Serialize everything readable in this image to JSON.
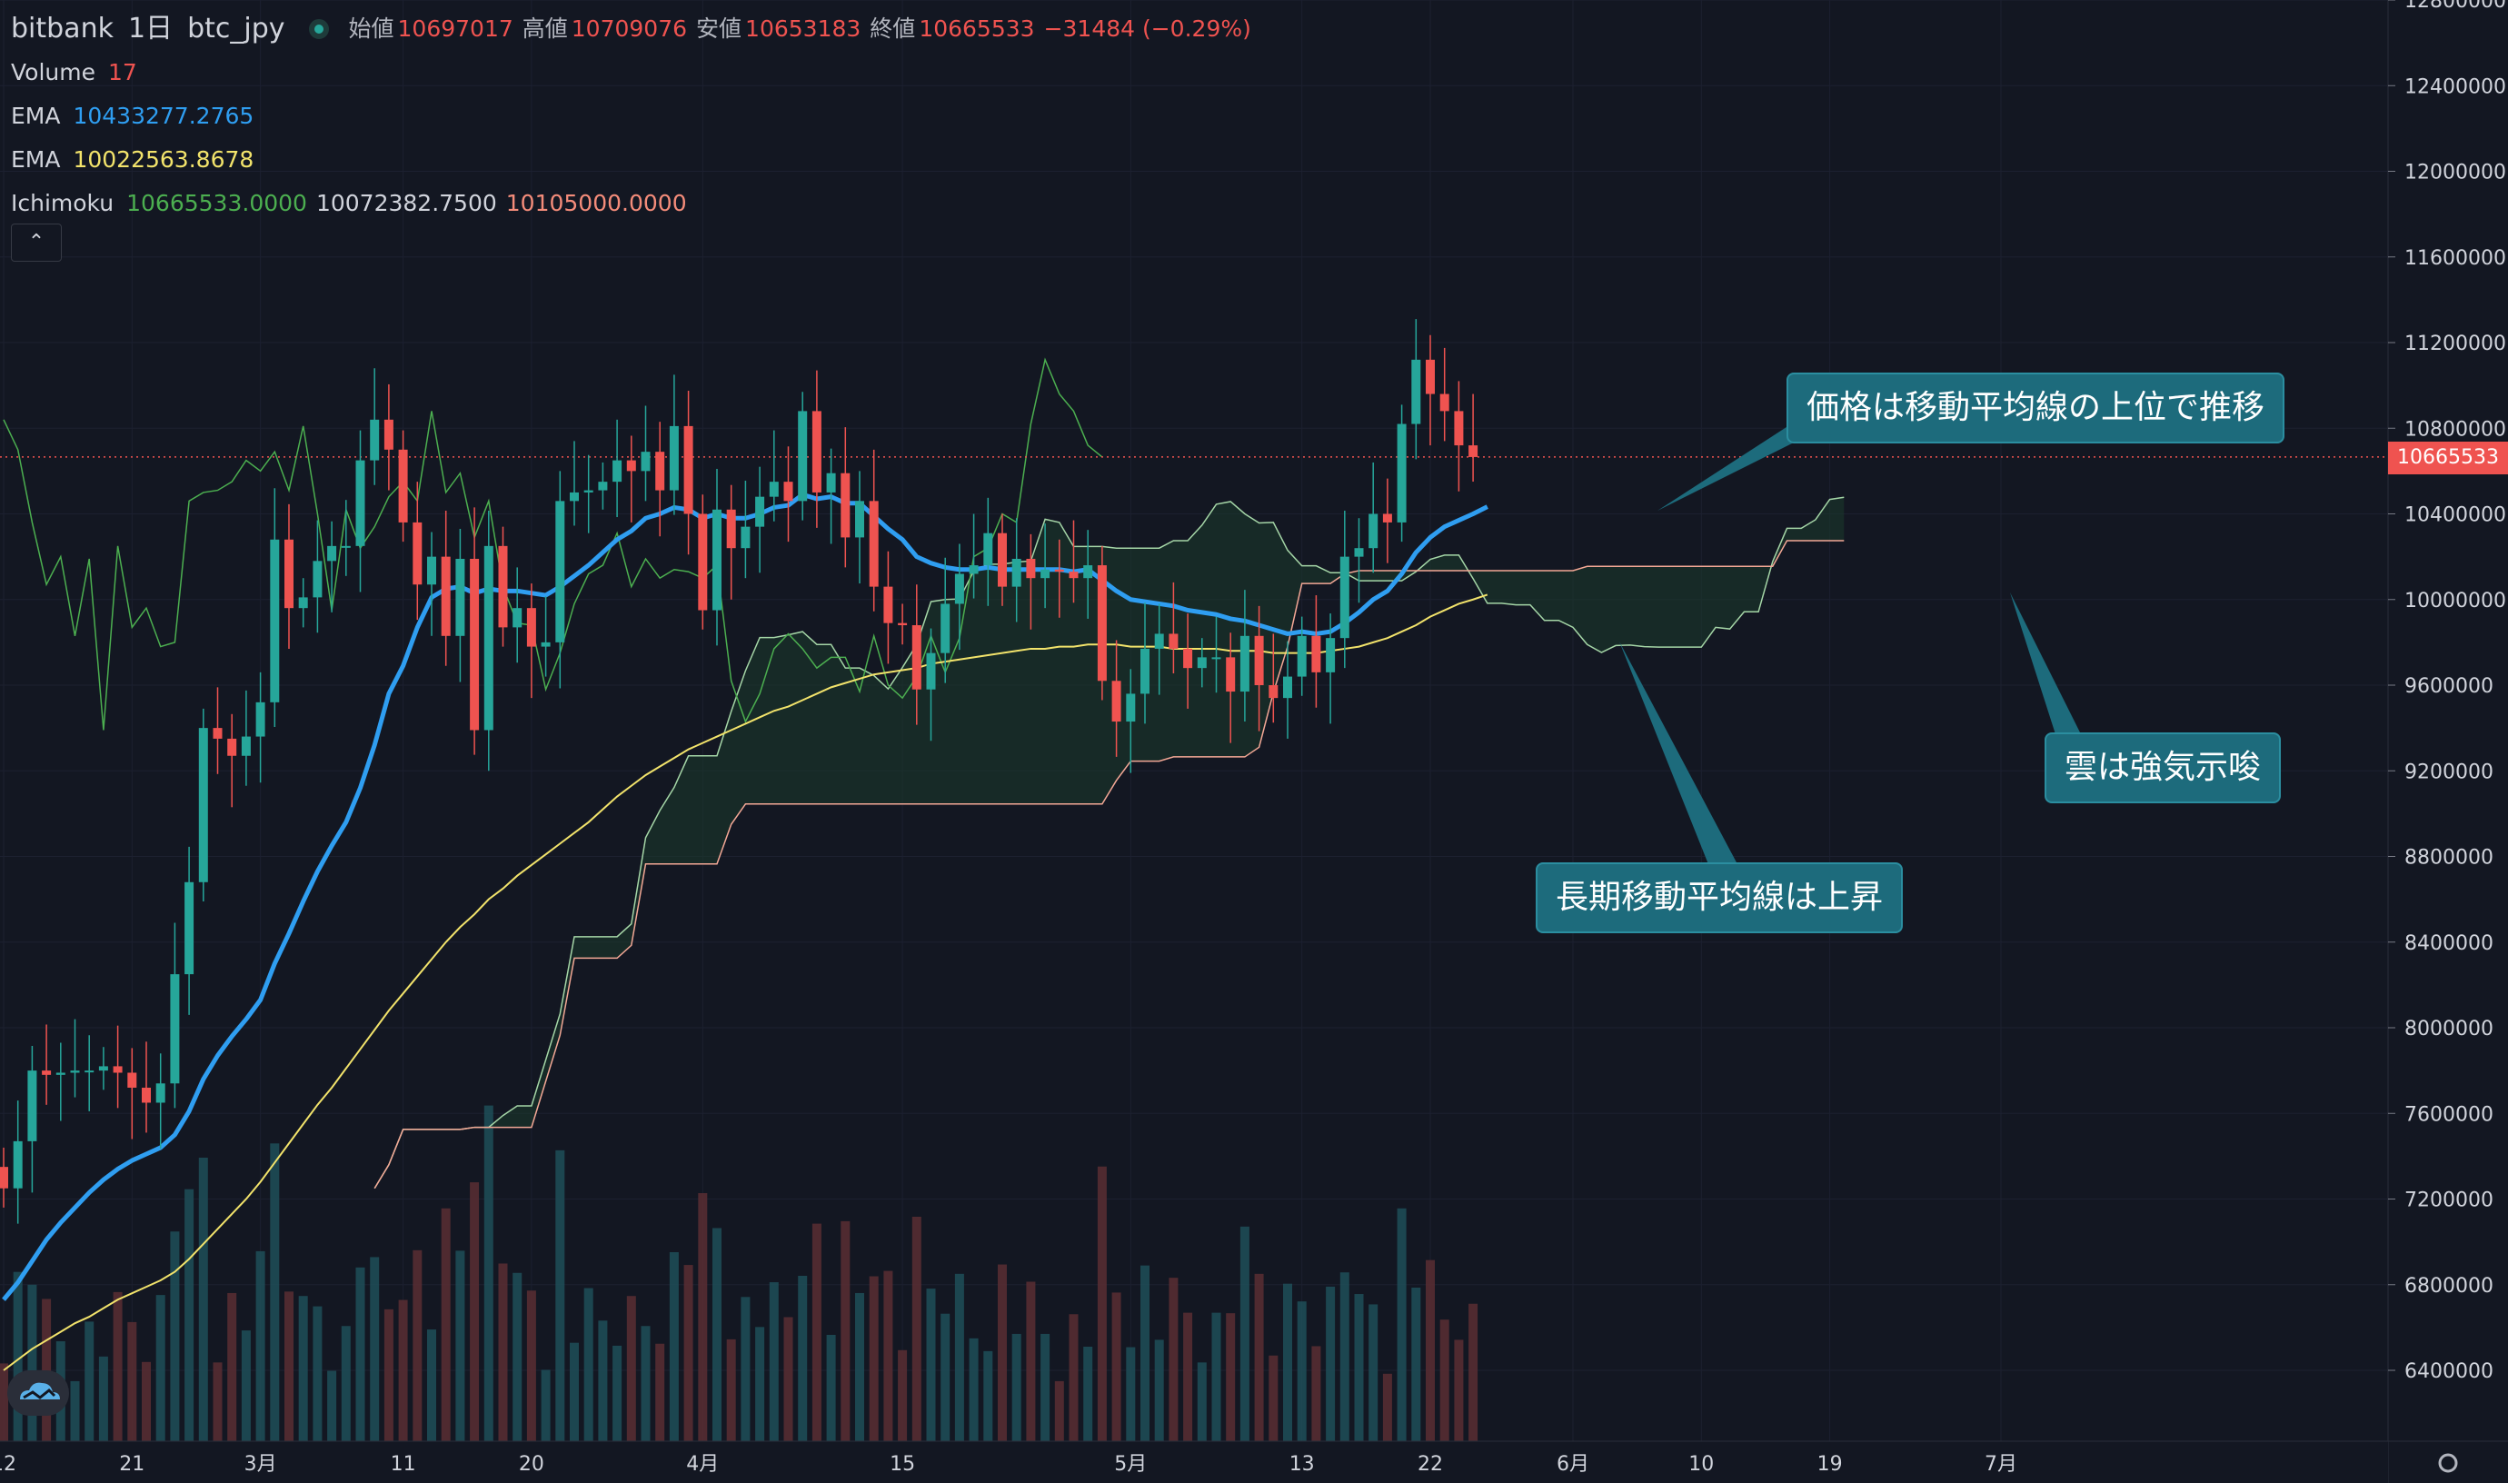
{
  "header": {
    "exchange": "bitbank",
    "interval": "1日",
    "symbol": "btc_jpy",
    "ohlc": {
      "open_label": "始値",
      "open": "10697017",
      "high_label": "高値",
      "high": "10709076",
      "low_label": "安値",
      "low": "10653183",
      "close_label": "終値",
      "close": "10665533",
      "change": "−31484 (−0.29%)"
    }
  },
  "indicators": {
    "volume": {
      "label": "Volume",
      "value": "17"
    },
    "ema1": {
      "label": "EMA",
      "value": "10433277.2765"
    },
    "ema2": {
      "label": "EMA",
      "value": "10022563.8678"
    },
    "ichimoku": {
      "label": "Ichimoku",
      "conversion": "10665533.0000",
      "base": "10072382.7500",
      "span": "10105000.0000"
    }
  },
  "collapse_button": "⌃",
  "last_price_tag": "10665533",
  "callouts": {
    "price_above_ma": "価格は移動平均線の上位で推移",
    "cloud_bullish": "雲は強気示唆",
    "long_ma_rising": "長期移動平均線は上昇"
  },
  "colors": {
    "background": "#131722",
    "up": "#26a69a",
    "down": "#ef5350",
    "ema_fast": "#2f9ef1",
    "ema_slow": "#f2e36b",
    "callout": "#1d6b7c"
  },
  "chart_data": {
    "type": "candlestick",
    "ylim": [
      6150000,
      12800000
    ],
    "y_ticks": [
      6400000,
      6800000,
      7200000,
      7600000,
      8000000,
      8400000,
      8800000,
      9200000,
      9600000,
      10000000,
      10400000,
      10800000,
      11200000,
      11600000,
      12000000,
      12400000,
      12800000
    ],
    "y_tick_labels": [
      "6400000",
      "6800000",
      "7200000",
      "7600000",
      "8000000",
      "8400000",
      "8800000",
      "9200000",
      "9600000",
      "10000000",
      "10400000",
      "10800000",
      "11200000",
      "11600000",
      "12000000",
      "12400000",
      "12800000"
    ],
    "x_ticks": [
      {
        "label": "12",
        "i": 0
      },
      {
        "label": "21",
        "i": 9
      },
      {
        "label": "3月",
        "i": 18
      },
      {
        "label": "11",
        "i": 28
      },
      {
        "label": "20",
        "i": 37
      },
      {
        "label": "4月",
        "i": 49
      },
      {
        "label": "15",
        "i": 63
      },
      {
        "label": "5月",
        "i": 79
      },
      {
        "label": "13",
        "i": 91
      },
      {
        "label": "22",
        "i": 100
      },
      {
        "label": "6月",
        "i": 110
      },
      {
        "label": "10",
        "i": 119
      },
      {
        "label": "19",
        "i": 128
      },
      {
        "label": "7月",
        "i": 140
      }
    ],
    "closes": [
      7250000,
      7470000,
      7800000,
      7780000,
      7790000,
      7800000,
      7800000,
      7820000,
      7790000,
      7720000,
      7650000,
      7740000,
      8250000,
      8680000,
      9400000,
      9350000,
      9270000,
      9360000,
      9520000,
      10280000,
      9960000,
      10010000,
      10180000,
      10250000,
      10250000,
      10650000,
      10840000,
      10700000,
      10360000,
      10070000,
      10200000,
      9830000,
      10190000,
      9390000,
      10250000,
      9870000,
      9960000,
      9780000,
      9800000,
      10460000,
      10500000,
      10510000,
      10550000,
      10650000,
      10600000,
      10690000,
      10510000,
      10810000,
      10400000,
      9950000,
      10420000,
      10240000,
      10340000,
      10480000,
      10550000,
      10460000,
      10880000,
      10500000,
      10590000,
      10290000,
      10460000,
      10060000,
      9890000,
      9880000,
      9580000,
      9750000,
      9980000,
      10120000,
      10160000,
      10310000,
      10060000,
      10190000,
      10100000,
      10140000,
      10130000,
      10100000,
      10160000,
      9620000,
      9430000,
      9560000,
      9770000,
      9840000,
      9770000,
      9680000,
      9730000,
      9730000,
      9570000,
      9830000,
      9600000,
      9540000,
      9640000,
      9830000,
      9660000,
      9820000,
      10200000,
      10240000,
      10400000,
      10360000,
      10820000,
      11120000,
      10960000,
      10880000,
      10720000,
      10665533
    ],
    "ema_fast_values": [
      6730000,
      6810000,
      6910000,
      7010000,
      7090000,
      7160000,
      7230000,
      7290000,
      7340000,
      7380000,
      7410000,
      7440000,
      7500000,
      7610000,
      7760000,
      7870000,
      7960000,
      8040000,
      8130000,
      8300000,
      8440000,
      8590000,
      8730000,
      8850000,
      8960000,
      9120000,
      9320000,
      9560000,
      9690000,
      9870000,
      10010000,
      10050000,
      10060000,
      10030000,
      10050000,
      10040000,
      10040000,
      10030000,
      10020000,
      10060000,
      10110000,
      10160000,
      10220000,
      10280000,
      10320000,
      10380000,
      10400000,
      10430000,
      10420000,
      10380000,
      10400000,
      10380000,
      10380000,
      10400000,
      10430000,
      10440000,
      10490000,
      10470000,
      10480000,
      10450000,
      10450000,
      10390000,
      10330000,
      10280000,
      10200000,
      10170000,
      10150000,
      10140000,
      10140000,
      10150000,
      10140000,
      10140000,
      10140000,
      10140000,
      10140000,
      10130000,
      10140000,
      10090000,
      10040000,
      10000000,
      9990000,
      9980000,
      9970000,
      9950000,
      9940000,
      9930000,
      9910000,
      9900000,
      9880000,
      9860000,
      9840000,
      9850000,
      9840000,
      9850000,
      9890000,
      9940000,
      10000000,
      10040000,
      10120000,
      10220000,
      10290000,
      10340000,
      10370000,
      10400000,
      10433277
    ],
    "ema_slow_values": [
      6400000,
      6450000,
      6500000,
      6540000,
      6580000,
      6620000,
      6650000,
      6690000,
      6730000,
      6760000,
      6790000,
      6820000,
      6860000,
      6920000,
      6990000,
      7060000,
      7130000,
      7200000,
      7280000,
      7370000,
      7460000,
      7550000,
      7640000,
      7720000,
      7810000,
      7900000,
      7990000,
      8080000,
      8160000,
      8240000,
      8320000,
      8400000,
      8470000,
      8530000,
      8600000,
      8650000,
      8710000,
      8760000,
      8810000,
      8860000,
      8910000,
      8960000,
      9020000,
      9080000,
      9130000,
      9180000,
      9220000,
      9260000,
      9300000,
      9330000,
      9360000,
      9390000,
      9420000,
      9450000,
      9480000,
      9500000,
      9530000,
      9560000,
      9590000,
      9610000,
      9630000,
      9650000,
      9660000,
      9670000,
      9680000,
      9700000,
      9710000,
      9720000,
      9730000,
      9740000,
      9750000,
      9760000,
      9770000,
      9770000,
      9780000,
      9780000,
      9790000,
      9790000,
      9790000,
      9780000,
      9780000,
      9780000,
      9770000,
      9770000,
      9770000,
      9770000,
      9760000,
      9760000,
      9760000,
      9750000,
      9750000,
      9750000,
      9750000,
      9760000,
      9770000,
      9780000,
      9800000,
      9820000,
      9850000,
      9880000,
      9920000,
      9950000,
      9980000,
      10000000,
      10022563
    ],
    "volume_scale_max": 80
  }
}
